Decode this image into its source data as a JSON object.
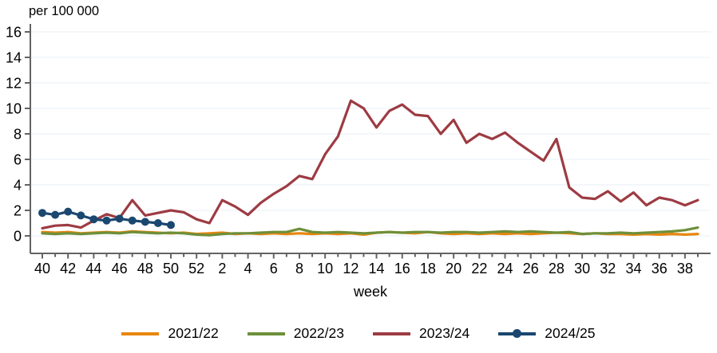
{
  "chart_data": {
    "type": "line",
    "title": "per 100 000",
    "xlabel": "week",
    "ylim": [
      0,
      16
    ],
    "ytick_step": 2,
    "grid": true,
    "legend_position": "bottom",
    "x_categories": [
      "40",
      "41",
      "42",
      "43",
      "44",
      "45",
      "46",
      "47",
      "48",
      "49",
      "50",
      "51",
      "52",
      "1",
      "2",
      "3",
      "4",
      "5",
      "6",
      "7",
      "8",
      "9",
      "10",
      "11",
      "12",
      "13",
      "14",
      "15",
      "16",
      "17",
      "18",
      "19",
      "20",
      "21",
      "22",
      "23",
      "24",
      "25",
      "26",
      "27",
      "28",
      "29",
      "30",
      "31",
      "32",
      "33",
      "34",
      "35",
      "36",
      "37",
      "38",
      "39"
    ],
    "series": [
      {
        "name": "2021/22",
        "color": "#E8860D",
        "marker": "none",
        "values": [
          0.3,
          0.25,
          0.3,
          0.2,
          0.25,
          0.3,
          0.25,
          0.35,
          0.3,
          0.25,
          0.2,
          0.25,
          0.15,
          0.2,
          0.25,
          0.15,
          0.2,
          0.15,
          0.2,
          0.15,
          0.2,
          0.15,
          0.2,
          0.15,
          0.2,
          0.1,
          0.25,
          0.3,
          0.25,
          0.2,
          0.3,
          0.2,
          0.15,
          0.2,
          0.15,
          0.2,
          0.15,
          0.2,
          0.15,
          0.2,
          0.25,
          0.2,
          0.15,
          0.2,
          0.15,
          0.15,
          0.1,
          0.15,
          0.1,
          0.15,
          0.1,
          0.15
        ]
      },
      {
        "name": "2022/23",
        "color": "#6D8F3A",
        "marker": "none",
        "values": [
          0.2,
          0.15,
          0.2,
          0.15,
          0.2,
          0.25,
          0.2,
          0.3,
          0.25,
          0.2,
          0.25,
          0.2,
          0.1,
          0.05,
          0.15,
          0.2,
          0.2,
          0.25,
          0.3,
          0.3,
          0.55,
          0.3,
          0.25,
          0.3,
          0.25,
          0.2,
          0.25,
          0.3,
          0.25,
          0.3,
          0.3,
          0.25,
          0.3,
          0.3,
          0.25,
          0.3,
          0.35,
          0.3,
          0.35,
          0.3,
          0.25,
          0.3,
          0.15,
          0.2,
          0.2,
          0.25,
          0.2,
          0.25,
          0.3,
          0.35,
          0.45,
          0.65
        ]
      },
      {
        "name": "2023/24",
        "color": "#9D3B43",
        "marker": "none",
        "values": [
          0.6,
          0.8,
          0.85,
          0.65,
          1.2,
          1.7,
          1.4,
          2.8,
          1.6,
          1.8,
          2.0,
          1.85,
          1.3,
          1.0,
          2.8,
          2.3,
          1.65,
          2.6,
          3.3,
          3.9,
          4.7,
          4.45,
          6.4,
          7.8,
          10.6,
          10.0,
          8.5,
          9.8,
          10.3,
          9.5,
          9.4,
          8.0,
          9.1,
          7.3,
          8.0,
          7.6,
          8.1,
          7.3,
          6.6,
          5.9,
          7.6,
          3.8,
          3.0,
          2.9,
          3.5,
          2.7,
          3.4,
          2.4,
          3.0,
          2.8,
          2.4,
          2.8
        ]
      },
      {
        "name": "2024/25",
        "color": "#1A476F",
        "marker": "circle",
        "values": [
          1.8,
          1.65,
          1.9,
          1.6,
          1.3,
          1.2,
          1.35,
          1.2,
          1.1,
          1.0,
          0.85
        ]
      }
    ],
    "style": {
      "axis_color": "#636363",
      "grid_color": "#E9EFF4",
      "text_color": "#000000",
      "background": "#ffffff"
    }
  }
}
